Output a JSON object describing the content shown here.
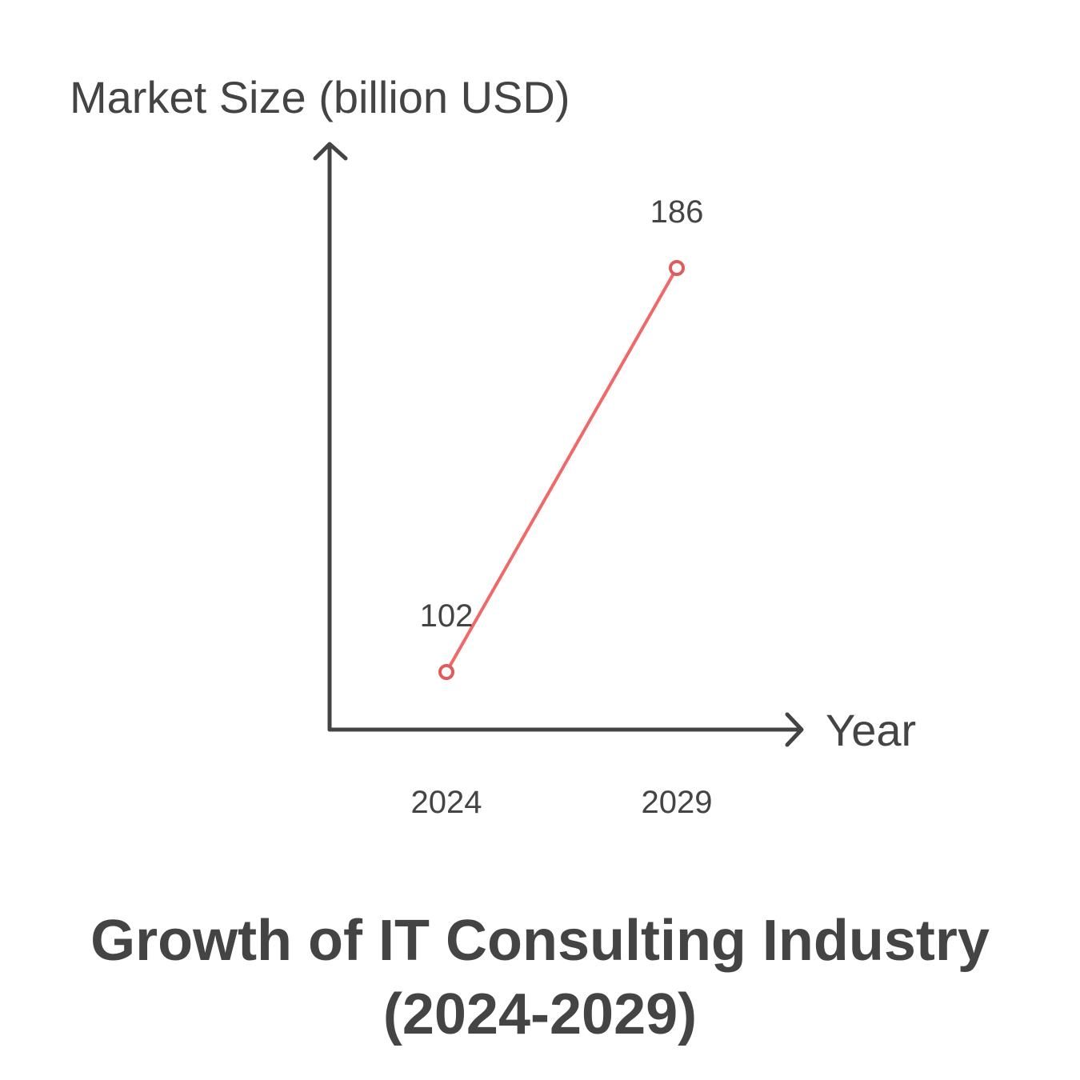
{
  "chart_data": {
    "type": "line",
    "title_lines": [
      "Growth of IT Consulting Industry",
      "(2024-2029)"
    ],
    "xlabel": "Year",
    "ylabel": "Market Size (billion USD)",
    "categories": [
      "2024",
      "2029"
    ],
    "series": [
      {
        "values": [
          102,
          186
        ]
      }
    ],
    "data_labels": [
      "102",
      "186"
    ],
    "grid": false,
    "line_color": "#f06868",
    "axis_color": "#444444"
  }
}
